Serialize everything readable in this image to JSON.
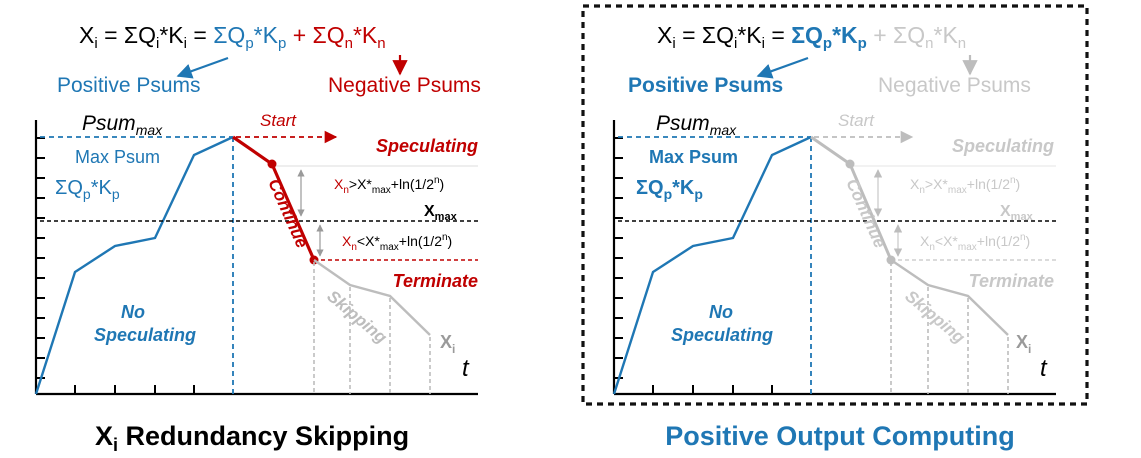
{
  "colors": {
    "blue": "#1f77b4",
    "red": "#c00000",
    "gray": "#bdbdbd",
    "black": "#000000",
    "hint": "#c8c8c8"
  },
  "left_panel": {
    "equation": {
      "lhs": "X",
      "lhs_sub": "i",
      "eq1": " = ΣQ",
      "q_sub": "i",
      "k_text": "*K",
      "k_sub": "i",
      "eq2": " = ",
      "pos": "ΣQ",
      "pos_sub_q": "p",
      "pos_k": "*K",
      "pos_sub_k": "p",
      "plus": " + ",
      "neg": "ΣQ",
      "neg_sub_q": "n",
      "neg_k": "*K",
      "neg_sub_k": "n"
    },
    "positive_psums": "Positive Psums",
    "negative_psums": "Negative Psums",
    "psum_max": "Psum",
    "psum_max_sub": "max",
    "max_psum": "Max Psum",
    "sum_qk": "ΣQ",
    "sum_qk_sub_q": "p",
    "sum_qk_k": "*K",
    "sum_qk_sub_k": "p",
    "start": "Start",
    "speculating": "Speculating",
    "continue": "Continue",
    "cond_upper": {
      "a": "X",
      "a_sub": "n",
      "b": ">X*",
      "b_sub": "max",
      "c": "+ln(1/2",
      "c_sup": "n",
      "d": ")"
    },
    "cond_lower": {
      "a": "X",
      "a_sub": "n",
      "b": "<X*",
      "b_sub": "max",
      "c": "+ln(1/2",
      "c_sup": "n",
      "d": ")"
    },
    "x_max": "X",
    "x_max_sub": "max",
    "terminate": "Terminate",
    "skipping": "Skipping",
    "xi": "X",
    "xi_sub": "i",
    "no": "No",
    "no_speculating": "Speculating",
    "t_axis": "t",
    "caption": "X",
    "caption_sub": "i",
    "caption_rest": " Redundancy Skipping"
  },
  "right_panel": {
    "equation": {
      "lhs": "X",
      "lhs_sub": "i",
      "eq1": " = ΣQ",
      "q_sub": "i",
      "k_text": "*K",
      "k_sub": "i",
      "eq2": " = ",
      "pos": "ΣQ",
      "pos_sub_q": "p",
      "pos_k": "*K",
      "pos_sub_k": "p",
      "plus": " + ",
      "neg": "ΣQ",
      "neg_sub_q": "n",
      "neg_k": "*K",
      "neg_sub_k": "n"
    },
    "positive_psums": "Positive Psums",
    "negative_psums": "Negative Psums",
    "psum_max": "Psum",
    "psum_max_sub": "max",
    "max_psum": "Max Psum",
    "sum_qk": "ΣQ",
    "sum_qk_sub_q": "p",
    "sum_qk_k": "*K",
    "sum_qk_sub_k": "p",
    "start": "Start",
    "speculating": "Speculating",
    "continue": "Continue",
    "cond_upper": {
      "a": "X",
      "a_sub": "n",
      "b": ">X*",
      "b_sub": "max",
      "c": "+ln(1/2",
      "c_sup": "n",
      "d": ")"
    },
    "cond_lower": {
      "a": "X",
      "a_sub": "n",
      "b": "<X*",
      "b_sub": "max",
      "c": "+ln(1/2",
      "c_sup": "n",
      "d": ")"
    },
    "x_max": "X",
    "x_max_sub": "max",
    "terminate": "Terminate",
    "skipping": "Skipping",
    "xi": "X",
    "xi_sub": "i",
    "no": "No",
    "no_speculating": "Speculating",
    "t_axis": "t",
    "caption": "Positive Output Computing"
  }
}
